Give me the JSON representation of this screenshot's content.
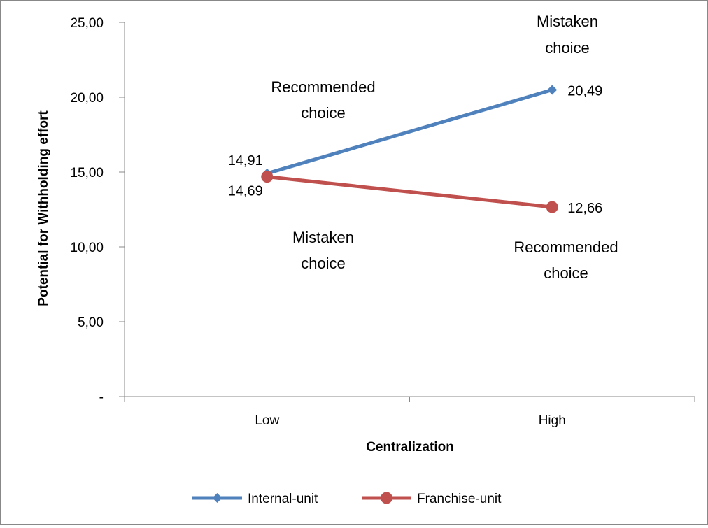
{
  "chart_data": {
    "type": "line",
    "categories": [
      "Low",
      "High"
    ],
    "series": [
      {
        "name": "Internal-unit",
        "values": [
          14.91,
          20.49
        ],
        "labels": [
          "14,91",
          "20,49"
        ],
        "color": "#4f81bd",
        "marker": "diamond"
      },
      {
        "name": "Franchise-unit",
        "values": [
          14.69,
          12.66
        ],
        "labels": [
          "14,69",
          "12,66"
        ],
        "color": "#c0504d",
        "marker": "circle"
      }
    ],
    "xlabel": "Centralization",
    "ylabel": "Potential for Withholding effort",
    "ylim": [
      0,
      25
    ],
    "y_ticks": [
      {
        "value": 0,
        "label": "-"
      },
      {
        "value": 5,
        "label": "5,00"
      },
      {
        "value": 10,
        "label": "10,00"
      },
      {
        "value": 15,
        "label": "15,00"
      },
      {
        "value": 20,
        "label": "20,00"
      },
      {
        "value": 25,
        "label": "25,00"
      }
    ],
    "grid": false,
    "legend_position": "bottom",
    "annotations": {
      "top_left": [
        "Recommended",
        "choice"
      ],
      "top_right": [
        "Mistaken",
        "choice"
      ],
      "bottom_left": [
        "Mistaken",
        "choice"
      ],
      "bottom_right": [
        "Recommended",
        "choice"
      ]
    }
  }
}
